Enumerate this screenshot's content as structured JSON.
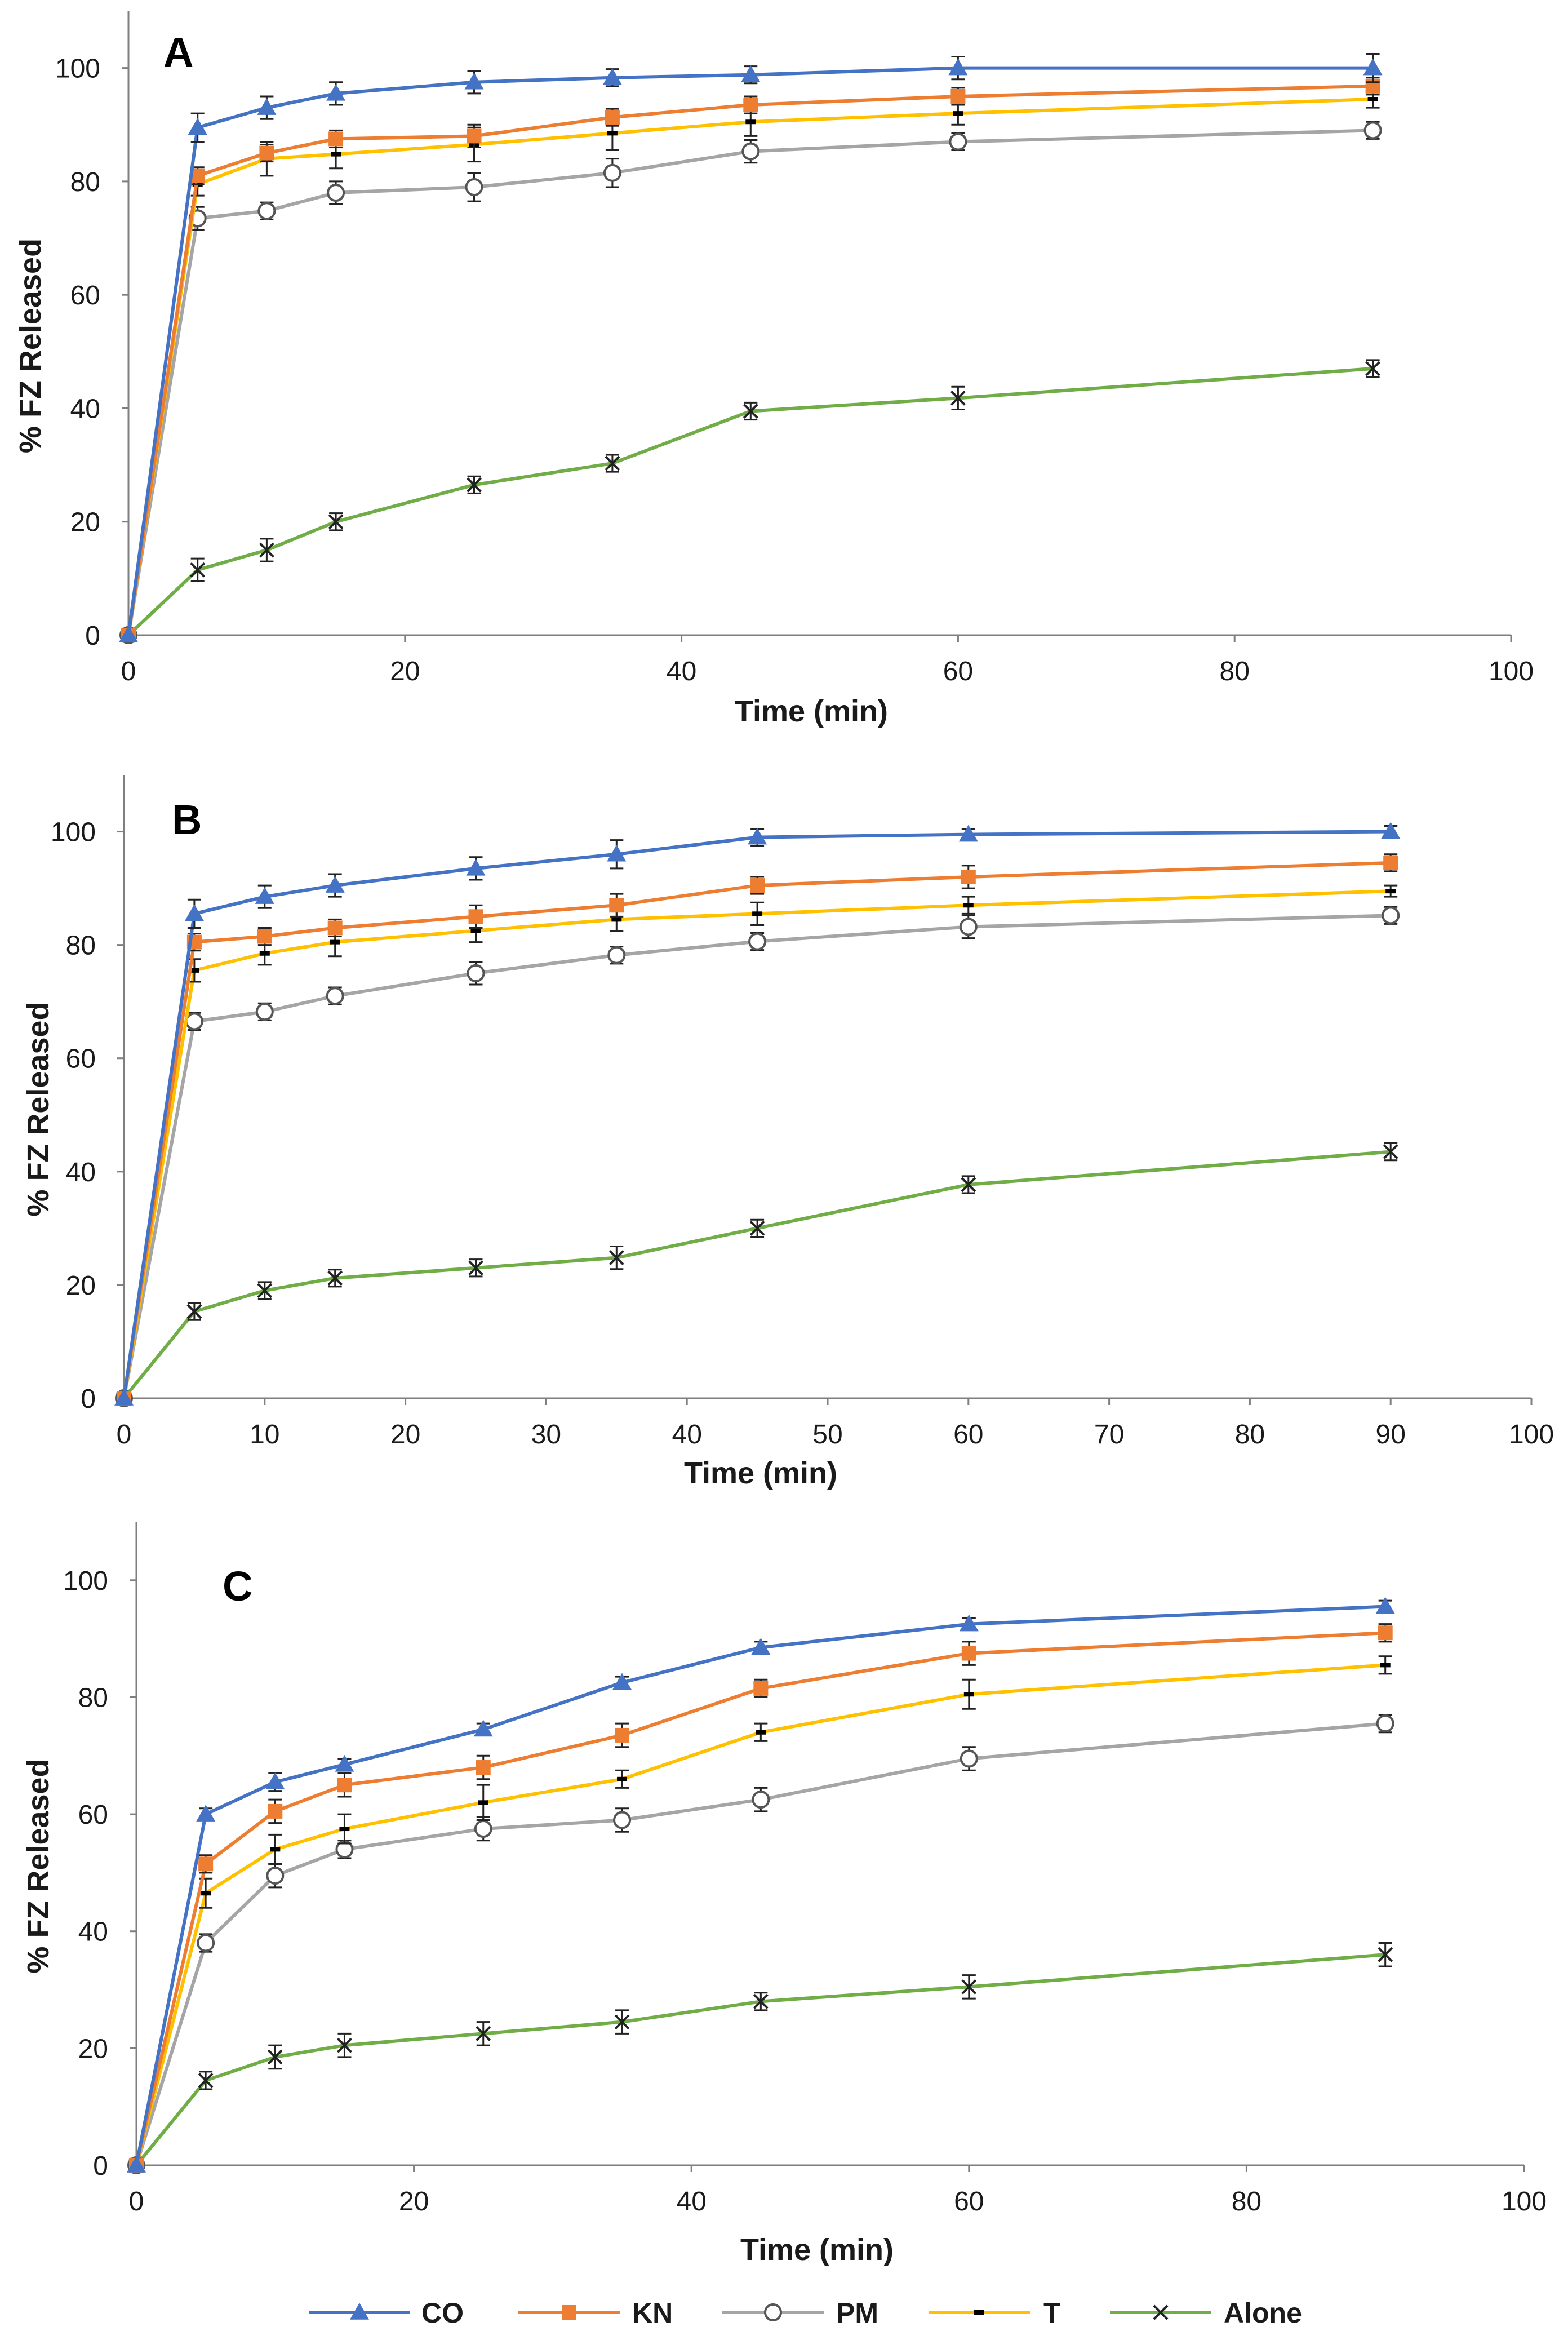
{
  "colors": {
    "CO": "#4472C4",
    "KN": "#ED7D31",
    "PM": "#A5A5A5",
    "T": "#FFC000",
    "Alone": "#70AD47",
    "axis": "#7f7f7f",
    "text": "#1a1a1a"
  },
  "legend": [
    "CO",
    "KN",
    "PM",
    "T",
    "Alone"
  ],
  "chart_data": [
    {
      "type": "line",
      "panel": "A",
      "xlabel": "Time (min)",
      "ylabel": "% FZ Released",
      "xlim": [
        0,
        100
      ],
      "ylim": [
        0,
        110
      ],
      "xticks": [
        0,
        20,
        40,
        60,
        80,
        100
      ],
      "yticks": [
        0,
        20,
        40,
        60,
        80,
        100
      ],
      "x": [
        0,
        5,
        10,
        15,
        25,
        35,
        45,
        60,
        90
      ],
      "series": [
        {
          "name": "CO",
          "values": [
            0,
            89.5,
            93,
            95.5,
            97.5,
            98.3,
            98.8,
            100,
            100
          ],
          "errors": [
            0,
            2.5,
            2,
            2,
            2,
            1.5,
            1.5,
            2,
            2.5
          ]
        },
        {
          "name": "KN",
          "values": [
            0,
            81,
            85,
            87.5,
            88,
            91.3,
            93.5,
            95,
            96.8
          ],
          "errors": [
            0,
            1.5,
            1.5,
            1.5,
            2,
            1.5,
            1.5,
            1.5,
            1.5
          ]
        },
        {
          "name": "T",
          "values": [
            0,
            79.5,
            84,
            84.8,
            86.5,
            88.5,
            90.5,
            92,
            94.5
          ],
          "errors": [
            0,
            2,
            3,
            2.5,
            3,
            3,
            2.5,
            2,
            1.5
          ]
        },
        {
          "name": "PM",
          "values": [
            0,
            73.5,
            74.8,
            78,
            79,
            81.5,
            85.3,
            87,
            89
          ],
          "errors": [
            0,
            2,
            1.5,
            2,
            2.5,
            2.5,
            2,
            1.5,
            1.5
          ]
        },
        {
          "name": "Alone",
          "values": [
            0,
            11.5,
            15,
            20,
            26.5,
            30.3,
            39.5,
            41.8,
            47
          ],
          "errors": [
            0,
            2,
            2,
            1.5,
            1.5,
            1.5,
            1.5,
            2,
            1.5
          ]
        }
      ]
    },
    {
      "type": "line",
      "panel": "B",
      "xlabel": "Time (min)",
      "ylabel": "% FZ Released",
      "xlim": [
        0,
        100
      ],
      "ylim": [
        0,
        110
      ],
      "xticks": [
        0,
        10,
        20,
        30,
        40,
        50,
        60,
        70,
        80,
        90,
        100
      ],
      "yticks": [
        0,
        20,
        40,
        60,
        80,
        100
      ],
      "x": [
        0,
        5,
        10,
        15,
        25,
        35,
        45,
        60,
        90
      ],
      "series": [
        {
          "name": "CO",
          "values": [
            0,
            85.5,
            88.5,
            90.5,
            93.5,
            96,
            99,
            99.5,
            100
          ],
          "errors": [
            0,
            2.5,
            2,
            2,
            2,
            2.5,
            1.5,
            1,
            1
          ]
        },
        {
          "name": "KN",
          "values": [
            0,
            80.5,
            81.5,
            83,
            85,
            87,
            90.5,
            92,
            94.5
          ],
          "errors": [
            0,
            1.5,
            1.5,
            1.5,
            2,
            2,
            1.5,
            2,
            1.5
          ]
        },
        {
          "name": "T",
          "values": [
            0,
            75.5,
            78.5,
            80.5,
            82.5,
            84.5,
            85.5,
            87,
            89.5
          ],
          "errors": [
            0,
            2,
            2,
            2.5,
            2,
            2,
            2,
            1.5,
            1
          ]
        },
        {
          "name": "PM",
          "values": [
            0,
            66.5,
            68.2,
            71,
            75,
            78.2,
            80.6,
            83.2,
            85.2
          ],
          "errors": [
            0,
            1.5,
            1.5,
            1.5,
            2,
            1.5,
            1.5,
            2,
            1.5
          ]
        },
        {
          "name": "Alone",
          "values": [
            0,
            15.3,
            19,
            21.2,
            23,
            24.8,
            30,
            37.7,
            43.5
          ],
          "errors": [
            0,
            1.5,
            1.5,
            1.5,
            1.5,
            2,
            1.5,
            1.5,
            1.5
          ]
        }
      ]
    },
    {
      "type": "line",
      "panel": "C",
      "xlabel": "Time (min)",
      "ylabel": "% FZ Released",
      "xlim": [
        0,
        100
      ],
      "ylim": [
        0,
        110
      ],
      "xticks": [
        0,
        20,
        40,
        60,
        80,
        100
      ],
      "yticks": [
        0,
        20,
        40,
        60,
        80,
        100
      ],
      "x": [
        0,
        5,
        10,
        15,
        25,
        35,
        45,
        60,
        90
      ],
      "series": [
        {
          "name": "CO",
          "values": [
            0,
            60,
            65.5,
            68.5,
            74.5,
            82.5,
            88.5,
            92.5,
            95.5
          ],
          "errors": [
            0,
            1,
            1.5,
            1,
            1,
            1,
            1,
            1,
            1
          ]
        },
        {
          "name": "KN",
          "values": [
            0,
            51.5,
            60.5,
            65,
            68,
            73.5,
            81.5,
            87.5,
            91
          ],
          "errors": [
            0,
            1.5,
            2,
            2,
            2,
            2,
            1.5,
            2,
            1.5
          ]
        },
        {
          "name": "T",
          "values": [
            0,
            46.5,
            54,
            57.5,
            62,
            66,
            74,
            80.5,
            85.5
          ],
          "errors": [
            0,
            2.5,
            2.5,
            2.5,
            3,
            1.5,
            1.5,
            2.5,
            1.5
          ]
        },
        {
          "name": "PM",
          "values": [
            0,
            38,
            49.5,
            54,
            57.5,
            59,
            62.5,
            69.5,
            75.5
          ],
          "errors": [
            0,
            1.5,
            2,
            1.5,
            2,
            2,
            2,
            2,
            1.5
          ]
        },
        {
          "name": "Alone",
          "values": [
            0,
            14.5,
            18.5,
            20.5,
            22.5,
            24.5,
            28,
            30.5,
            36
          ],
          "errors": [
            0,
            1.5,
            2,
            2,
            2,
            2,
            1.5,
            2,
            2
          ]
        }
      ]
    }
  ]
}
